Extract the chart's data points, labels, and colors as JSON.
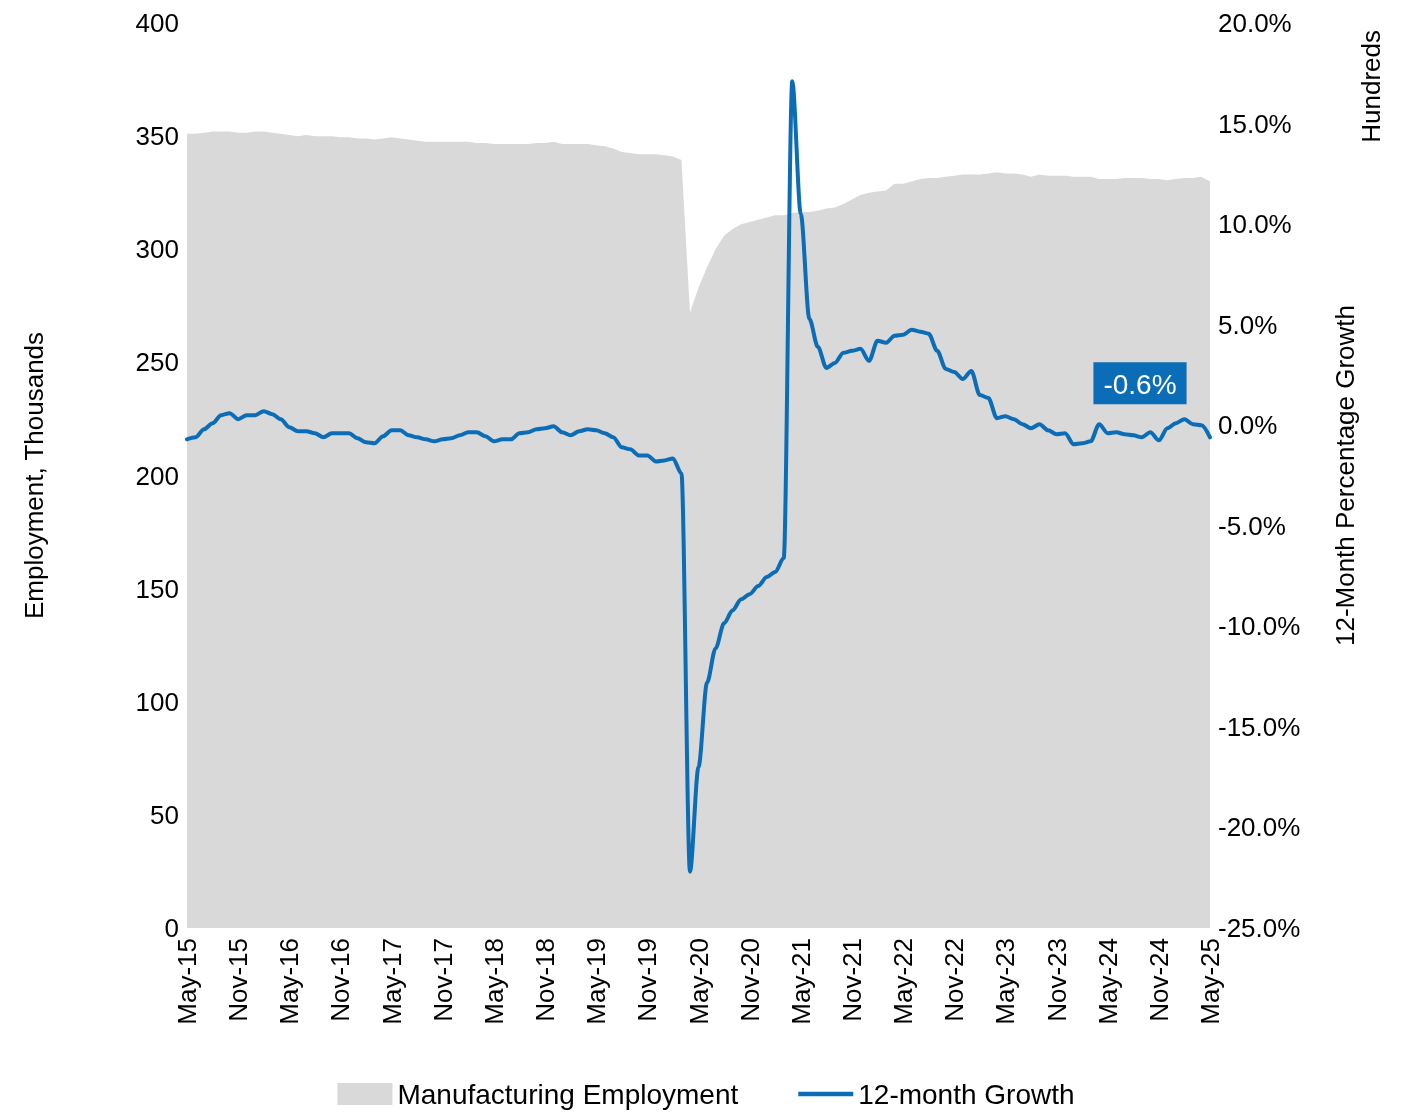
{
  "chart_data": {
    "type": "area",
    "ylabel": "Employment, Thousands",
    "y2label": "12-Month Percentage Growth",
    "annotations": [
      "Hundreds"
    ],
    "categories": [
      "May-15",
      null,
      null,
      null,
      null,
      null,
      "Nov-15",
      null,
      null,
      null,
      null,
      null,
      "May-16",
      null,
      null,
      null,
      null,
      null,
      "Nov-16",
      null,
      null,
      null,
      null,
      null,
      "May-17",
      null,
      null,
      null,
      null,
      null,
      "Nov-17",
      null,
      null,
      null,
      null,
      null,
      "May-18",
      null,
      null,
      null,
      null,
      null,
      "Nov-18",
      null,
      null,
      null,
      null,
      null,
      "May-19",
      null,
      null,
      null,
      null,
      null,
      "Nov-19",
      null,
      null,
      null,
      null,
      null,
      "May-20",
      null,
      null,
      null,
      null,
      null,
      "Nov-20",
      null,
      null,
      null,
      null,
      null,
      "May-21",
      null,
      null,
      null,
      null,
      null,
      "Nov-21",
      null,
      null,
      null,
      null,
      null,
      "May-22",
      null,
      null,
      null,
      null,
      null,
      "Nov-22",
      null,
      null,
      null,
      null,
      null,
      "May-23",
      null,
      null,
      null,
      null,
      null,
      "Nov-23",
      null,
      null,
      null,
      null,
      null,
      "May-24",
      null,
      null,
      null,
      null,
      null,
      "Nov-24",
      null,
      null,
      null,
      null,
      null,
      "May-25"
    ],
    "series": [
      {
        "name": "Manufacturing Employment",
        "color": "#d9d9d9",
        "values": [
          351,
          351,
          351.5,
          352,
          352,
          352,
          351.5,
          351.5,
          352,
          352,
          351.5,
          351,
          350.5,
          350,
          350.5,
          350,
          350,
          350,
          349.5,
          349.5,
          349,
          349,
          348.5,
          349,
          349.5,
          349,
          348.5,
          348,
          347.5,
          347.5,
          347.5,
          347.5,
          347.5,
          347.5,
          347,
          347,
          346.5,
          346.5,
          346.5,
          346.5,
          346.5,
          347,
          347,
          347.5,
          346.5,
          346.5,
          346.5,
          346.5,
          346,
          345.5,
          344.5,
          343,
          342.5,
          342,
          342,
          342,
          341.5,
          341,
          339.5,
          272,
          283,
          292,
          300,
          306,
          309,
          311,
          312,
          313,
          314,
          315,
          315,
          316,
          316.5,
          316.5,
          317,
          318,
          318.5,
          320,
          322,
          324,
          325,
          325.5,
          326,
          329,
          329,
          330,
          331,
          331.5,
          331.5,
          332,
          332.5,
          333,
          333,
          333,
          333.5,
          334,
          333.5,
          333.5,
          333,
          332,
          333,
          332.5,
          332.5,
          332.5,
          332,
          332,
          332,
          331,
          331,
          331,
          331.5,
          331.5,
          331.5,
          331,
          331,
          330.5,
          331,
          331.5,
          331.5,
          332,
          330
        ]
      },
      {
        "name": "12-month Growth",
        "type": "line",
        "axis": "y2",
        "color": "#0b6cb8",
        "values": [
          -0.7,
          -0.6,
          -0.2,
          0.1,
          0.5,
          0.6,
          0.3,
          0.5,
          0.5,
          0.7,
          0.55,
          0.3,
          -0.1,
          -0.3,
          -0.3,
          -0.4,
          -0.6,
          -0.4,
          -0.4,
          -0.4,
          -0.65,
          -0.85,
          -0.9,
          -0.55,
          -0.25,
          -0.25,
          -0.5,
          -0.6,
          -0.7,
          -0.8,
          -0.7,
          -0.65,
          -0.5,
          -0.35,
          -0.35,
          -0.55,
          -0.8,
          -0.7,
          -0.7,
          -0.4,
          -0.35,
          -0.2,
          -0.15,
          -0.05,
          -0.35,
          -0.5,
          -0.3,
          -0.2,
          -0.25,
          -0.4,
          -0.6,
          -1.1,
          -1.2,
          -1.5,
          -1.5,
          -1.8,
          -1.75,
          -1.65,
          -2.4,
          -22.2,
          -17.0,
          -12.8,
          -11.1,
          -9.85,
          -9.2,
          -8.65,
          -8.4,
          -8.0,
          -7.55,
          -7.3,
          -6.6,
          17.1,
          10.5,
          5.3,
          3.9,
          2.85,
          3.1,
          3.6,
          3.7,
          3.8,
          3.2,
          4.2,
          4.1,
          4.45,
          4.5,
          4.75,
          4.65,
          4.55,
          3.7,
          2.8,
          2.65,
          2.3,
          2.7,
          1.5,
          1.35,
          0.35,
          0.45,
          0.3,
          0.05,
          -0.15,
          0.05,
          -0.25,
          -0.45,
          -0.4,
          -0.95,
          -0.9,
          -0.8,
          0.05,
          -0.4,
          -0.35,
          -0.45,
          -0.5,
          -0.6,
          -0.35,
          -0.75,
          -0.15,
          0.1,
          0.3,
          0.05,
          0.0,
          -0.6
        ],
        "value_labels": [
          null,
          null,
          null,
          null,
          null,
          null,
          null,
          null,
          null,
          null,
          null,
          null,
          null,
          null,
          null,
          null,
          null,
          null,
          null,
          null,
          null,
          null,
          null,
          null,
          null,
          null,
          null,
          null,
          null,
          null,
          null,
          null,
          null,
          null,
          null,
          null,
          null,
          null,
          null,
          null,
          null,
          null,
          null,
          null,
          null,
          null,
          null,
          null,
          null,
          null,
          null,
          null,
          null,
          null,
          null,
          null,
          null,
          null,
          null,
          null,
          null,
          null,
          null,
          null,
          null,
          null,
          null,
          null,
          null,
          null,
          null,
          null,
          null,
          null,
          null,
          null,
          null,
          null,
          null,
          null,
          null,
          null,
          null,
          null,
          null,
          null,
          null,
          null,
          null,
          null,
          null,
          null,
          null,
          null,
          null,
          null,
          null,
          null,
          null,
          null,
          null,
          null,
          null,
          null,
          null,
          null,
          null,
          null,
          null,
          null,
          null,
          null,
          null,
          null,
          null,
          null,
          null,
          null,
          null,
          null,
          "-0.6%"
        ]
      }
    ],
    "ylim": [
      0,
      400
    ],
    "yticks": [
      0,
      50,
      100,
      150,
      200,
      250,
      300,
      350,
      400
    ],
    "y2lim": [
      -25,
      20
    ],
    "y2ticks": [
      {
        "value": -25,
        "label": "-25.0%"
      },
      {
        "value": -20,
        "label": "-20.0%"
      },
      {
        "value": -15,
        "label": "-15.0%"
      },
      {
        "value": -10,
        "label": "-10.0%"
      },
      {
        "value": -5,
        "label": "-5.0%"
      },
      {
        "value": 0,
        "label": "0.0%"
      },
      {
        "value": 5,
        "label": "5.0%"
      },
      {
        "value": 10,
        "label": "10.0%"
      },
      {
        "value": 15,
        "label": "15.0%"
      },
      {
        "value": 20,
        "label": "20.0%"
      }
    ],
    "grid": false,
    "legend": "bottom",
    "marker": "none",
    "line_style": "solid"
  }
}
